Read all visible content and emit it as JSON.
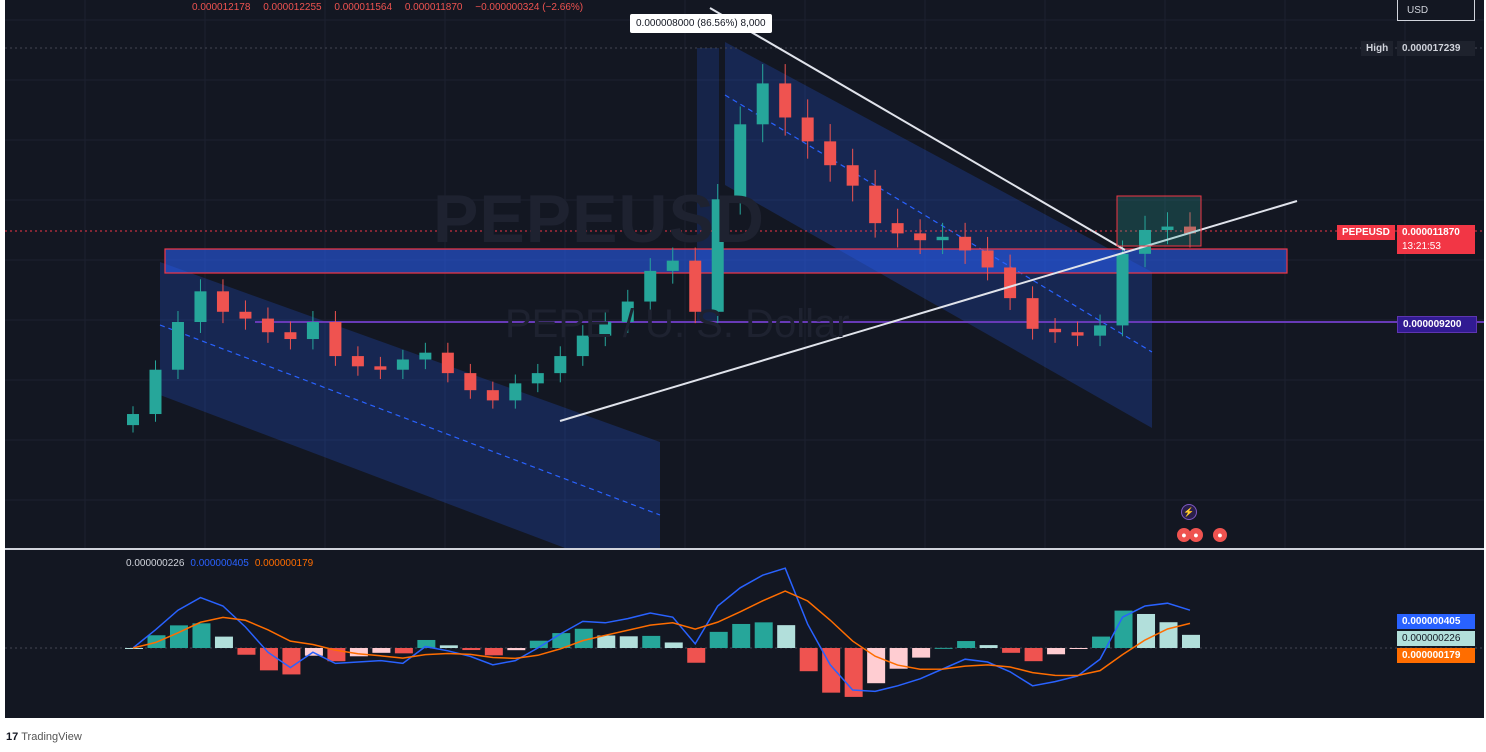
{
  "header": {
    "ohlc": [
      "0.000012178",
      "0.000012255",
      "0.000011564",
      "0.000011870",
      "−0.000000324 (−2.66%)"
    ],
    "measure_tooltip": "0.000008000 (86.56%) 8,000",
    "currency_button": "USD"
  },
  "watermark": {
    "symbol": "PEPEUSD",
    "name": "PEPE / U. S. Dollar"
  },
  "price_scale": {
    "high_label": "High",
    "high_value": "0.000017239",
    "symbol_label": "PEPEUSD",
    "last_value": "0.000011870",
    "countdown": "13:21:53",
    "level_value": "0.000009200"
  },
  "macd": {
    "legend": [
      "0.000000226",
      "0.000000405",
      "0.000000179"
    ],
    "axis": [
      "0.000000405",
      "0.000000226",
      "0.000000179"
    ]
  },
  "footer": {
    "brand": "TradingView",
    "logo": "17"
  },
  "colors": {
    "up": "#26a69a",
    "down": "#ef5350",
    "channel": "#2962ff",
    "background": "#131722",
    "macd_line": "#2962ff",
    "signal_line": "#ff6d00"
  },
  "chart_data": [
    {
      "type": "candlestick",
      "symbol": "PEPEUSD",
      "title": "PEPE / U. S. Dollar",
      "ohlc_last": {
        "open": 1.2178e-05,
        "high": 1.2255e-05,
        "low": 1.1564e-05,
        "close": 1.187e-05,
        "change": -3.24e-07,
        "change_pct": -2.66
      },
      "high": 1.7239e-05,
      "last_price": 1.187e-05,
      "horizontal_level": 9.2e-06,
      "close_series": [
        6.5e-06,
        7.8e-06,
        9.2e-06,
        1.01e-05,
        9.5e-06,
        9.3e-06,
        8.9e-06,
        8.7e-06,
        9.2e-06,
        8.2e-06,
        7.9e-06,
        7.8e-06,
        8.1e-06,
        8.3e-06,
        7.7e-06,
        7.2e-06,
        6.9e-06,
        7.4e-06,
        7.7e-06,
        8.2e-06,
        8.8e-06,
        9.2e-06,
        9.8e-06,
        1.07e-05,
        1.1e-05,
        9.5e-06,
        1.28e-05,
        1.5e-05,
        1.62e-05,
        1.52e-05,
        1.45e-05,
        1.38e-05,
        1.32e-05,
        1.21e-05,
        1.18e-05,
        1.16e-05,
        1.17e-05,
        1.13e-05,
        1.08e-05,
        9.9e-06,
        9e-06,
        8.9e-06,
        8.8e-06,
        9.1e-06,
        1.12e-05,
        1.19e-05,
        1.2e-05,
        1.18e-05
      ],
      "macd_last": {
        "histogram": 2.26e-07,
        "macd": 4.05e-07,
        "signal": 1.79e-07
      }
    }
  ]
}
